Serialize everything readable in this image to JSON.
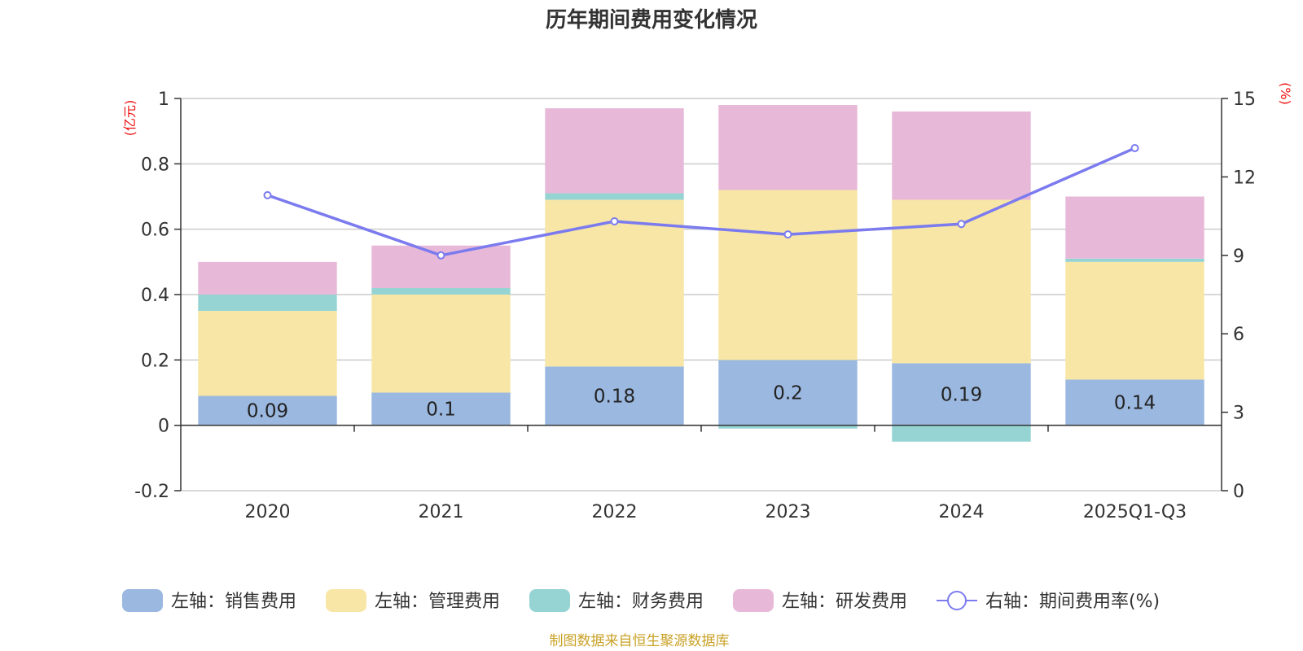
{
  "chart_data": {
    "type": "bar",
    "title": "历年期间费用变化情况",
    "categories": [
      "2020",
      "2021",
      "2022",
      "2023",
      "2024",
      "2025Q1-Q3"
    ],
    "left_axis": {
      "unit": "(亿元)",
      "min": -0.2,
      "max": 1.0,
      "ticks": [
        "-0.2",
        "0",
        "0.2",
        "0.4",
        "0.6",
        "0.8",
        "1"
      ]
    },
    "right_axis": {
      "unit": "(%)",
      "min": 0,
      "max": 15,
      "ticks": [
        "0",
        "3",
        "6",
        "9",
        "12",
        "15"
      ]
    },
    "series": [
      {
        "name": "左轴：销售费用",
        "type": "bar",
        "axis": "left",
        "color": "#9bb8e0",
        "values": [
          0.09,
          0.1,
          0.18,
          0.2,
          0.19,
          0.14
        ],
        "labels": [
          "0.09",
          "0.1",
          "0.18",
          "0.2",
          "0.19",
          "0.14"
        ]
      },
      {
        "name": "左轴：管理费用",
        "type": "bar",
        "axis": "left",
        "color": "#f7e6a6",
        "values": [
          0.26,
          0.3,
          0.51,
          0.52,
          0.5,
          0.36
        ]
      },
      {
        "name": "左轴：财务费用",
        "type": "bar",
        "axis": "left",
        "color": "#96d4d4",
        "values": [
          0.05,
          0.02,
          0.02,
          -0.01,
          -0.05,
          0.01
        ]
      },
      {
        "name": "左轴：研发费用",
        "type": "bar",
        "axis": "left",
        "color": "#e8b8d8",
        "values": [
          0.1,
          0.13,
          0.26,
          0.26,
          0.27,
          0.19
        ]
      },
      {
        "name": "右轴：期间费用率(%)",
        "type": "line",
        "axis": "right",
        "color": "#7b7bef",
        "values": [
          11.3,
          9.0,
          10.3,
          9.8,
          10.2,
          13.1
        ]
      }
    ]
  },
  "footer": {
    "source": "制图数据来自恒生聚源数据库"
  }
}
